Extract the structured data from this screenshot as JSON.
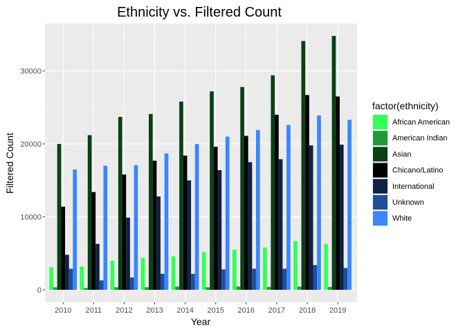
{
  "chart_data": {
    "type": "bar",
    "title": "Ethnicity vs. Filtered Count",
    "xlabel": "Year",
    "ylabel": "Filtered Count",
    "categories": [
      "2010",
      "2011",
      "2012",
      "2013",
      "2014",
      "2015",
      "2016",
      "2017",
      "2018",
      "2019"
    ],
    "yticks": [
      0,
      10000,
      20000,
      30000
    ],
    "ytick_labels": [
      "0",
      "10000",
      "20000",
      "30000"
    ],
    "ylim": [
      -1700,
      36500
    ],
    "grid": true,
    "legend_title": "factor(ethnicity)",
    "legend_position": "right",
    "series": [
      {
        "name": "African American",
        "color": "#33FF55",
        "values": [
          3100,
          3200,
          4000,
          4400,
          4600,
          5200,
          5500,
          5800,
          6700,
          6300
        ]
      },
      {
        "name": "American Indian",
        "color": "#1E9A38",
        "values": [
          350,
          250,
          350,
          350,
          450,
          350,
          450,
          400,
          450,
          400
        ]
      },
      {
        "name": "Asian",
        "color": "#0B4016",
        "values": [
          20000,
          21200,
          23700,
          24100,
          25800,
          27200,
          27800,
          29400,
          34100,
          34800
        ]
      },
      {
        "name": "Chicano/Latino",
        "color": "#000000",
        "values": [
          11400,
          13400,
          15800,
          17700,
          18400,
          19600,
          21100,
          24000,
          26700,
          26500
        ]
      },
      {
        "name": "International",
        "color": "#0E2342",
        "values": [
          4800,
          6300,
          9900,
          12800,
          15000,
          16400,
          17500,
          17900,
          19800,
          19900
        ]
      },
      {
        "name": "Unknown",
        "color": "#1F4F9B",
        "values": [
          2900,
          1300,
          1700,
          2200,
          2200,
          2800,
          2900,
          2900,
          3400,
          3000
        ]
      },
      {
        "name": "White",
        "color": "#3A86FF",
        "values": [
          16500,
          17000,
          17100,
          18700,
          20000,
          21000,
          21900,
          22600,
          23900,
          23300
        ]
      }
    ]
  }
}
